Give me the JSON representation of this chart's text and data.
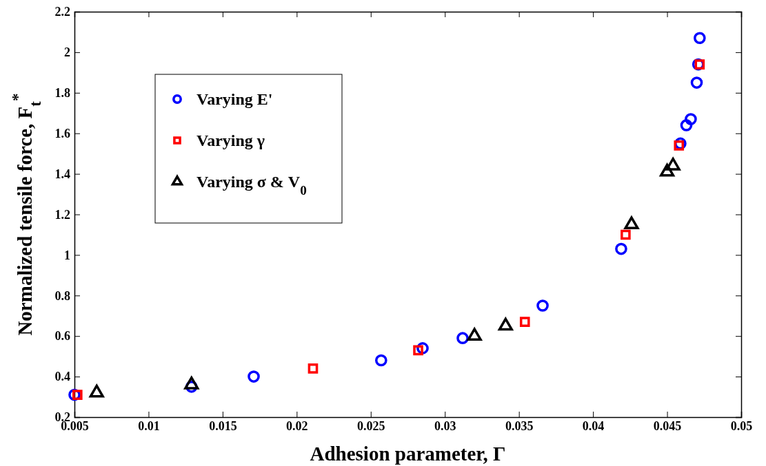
{
  "chart_data": {
    "type": "scatter",
    "xlabel": "Adhesion parameter, Γ",
    "ylabel": "Normalized tensile force, F$_{t}$$^{*}$",
    "xlim": [
      0.005,
      0.05
    ],
    "xticks": [
      0.005,
      0.01,
      0.015,
      0.02,
      0.025,
      0.03,
      0.035,
      0.04,
      0.045,
      0.05
    ],
    "ylim": [
      0.2,
      2.2
    ],
    "yticks": [
      0.2,
      0.4,
      0.6,
      0.8,
      1,
      1.2,
      1.4,
      1.6,
      1.8,
      2,
      2.2
    ],
    "grid": false,
    "legend": "top left",
    "series": [
      {
        "name": "Varying E'",
        "color": "#0000ff",
        "marker": "circle",
        "x": [
          0.005,
          0.0129,
          0.0171,
          0.0257,
          0.0285,
          0.0312,
          0.0366,
          0.0419,
          0.0459,
          0.0463,
          0.0466,
          0.047,
          0.0471,
          0.0472
        ],
        "values": [
          0.31,
          0.35,
          0.4,
          0.48,
          0.54,
          0.59,
          0.75,
          1.03,
          1.55,
          1.64,
          1.67,
          1.85,
          1.94,
          2.07
        ]
      },
      {
        "name": "Varying γ",
        "color": "#ff0000",
        "marker": "square",
        "x": [
          0.0052,
          0.0211,
          0.0282,
          0.0354,
          0.0422,
          0.0458,
          0.0472
        ],
        "values": [
          0.31,
          0.44,
          0.53,
          0.67,
          1.1,
          1.54,
          1.94
        ]
      },
      {
        "name": "Varying σ & V$_{0}$",
        "color": "#000000",
        "marker": "triangle",
        "x": [
          0.0065,
          0.0129,
          0.032,
          0.0341,
          0.0426,
          0.045,
          0.0454
        ],
        "values": [
          0.32,
          0.36,
          0.6,
          0.65,
          1.15,
          1.41,
          1.44
        ]
      }
    ]
  }
}
